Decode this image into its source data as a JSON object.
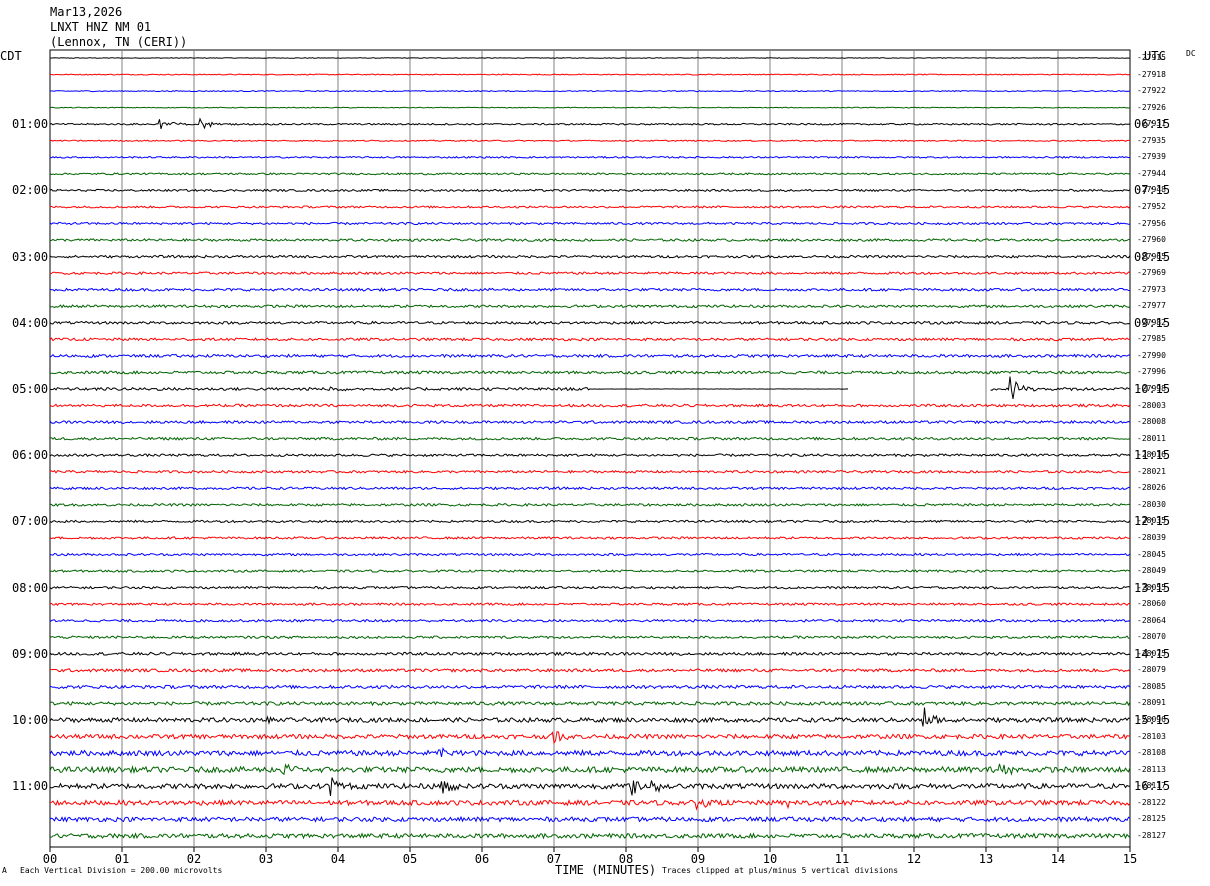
{
  "header": {
    "date": "Mar13,2026",
    "station": "LNXT HNZ NM 01",
    "location": "(Lennox, TN (CERI))"
  },
  "left_title": "CDT",
  "right_title": "UTC",
  "dc_label": "DC",
  "footer": {
    "mark": "A",
    "scale": "Each Vertical Division =  200.00 microvolts",
    "clip": "Traces clipped at plus/minus 5 vertical divisions"
  },
  "colors": {
    "trace_cycle": [
      "#000000",
      "#ff0000",
      "#0000ff",
      "#006400"
    ],
    "grid": "#808080"
  },
  "chart_data": {
    "type": "line",
    "title": "",
    "xlabel": "TIME (MINUTES)",
    "x_ticks": [
      "00",
      "01",
      "02",
      "03",
      "04",
      "05",
      "06",
      "07",
      "08",
      "09",
      "10",
      "11",
      "12",
      "13",
      "14",
      "15"
    ],
    "xlim": [
      0,
      15
    ],
    "left_time_labels": [
      "01:00",
      "02:00",
      "03:00",
      "04:00",
      "05:00",
      "06:00",
      "07:00",
      "08:00",
      "09:00",
      "10:00",
      "11:00"
    ],
    "right_time_labels": [
      "06:15",
      "07:15",
      "08:15",
      "09:15",
      "10:15",
      "11:15",
      "12:15",
      "13:15",
      "14:15",
      "15:15",
      "16:15"
    ],
    "trace_count": 48,
    "traces_per_hour": 4,
    "first_labeled_trace": 4,
    "dc_offsets": [
      "-27915",
      "-27918",
      "-27922",
      "-27926",
      "-27931",
      "-27935",
      "-27939",
      "-27944",
      "-27948",
      "-27952",
      "-27956",
      "-27960",
      "-27965",
      "-27969",
      "-27973",
      "-27977",
      "-27982",
      "-27985",
      "-27990",
      "-27996",
      "-27998",
      "-28003",
      "-28008",
      "-28011",
      "-28016",
      "-28021",
      "-28026",
      "-28030",
      "-28035",
      "-28039",
      "-28045",
      "-28049",
      "-28055",
      "-28060",
      "-28064",
      "-28070",
      "-28075",
      "-28079",
      "-28085",
      "-28091",
      "-28096",
      "-28103",
      "-28108",
      "-28113",
      "-28117",
      "-28122",
      "-28125",
      "-28127"
    ],
    "noise_level": [
      0.3,
      0.5,
      0.5,
      0.4,
      0.8,
      0.6,
      0.8,
      0.9,
      1.0,
      1.0,
      1.1,
      1.2,
      1.2,
      1.2,
      1.3,
      1.3,
      1.3,
      1.3,
      1.4,
      1.4,
      1.4,
      1.3,
      1.3,
      1.3,
      1.2,
      1.2,
      1.2,
      1.2,
      1.1,
      1.1,
      1.1,
      1.1,
      1.1,
      1.1,
      1.2,
      1.2,
      1.4,
      1.5,
      1.6,
      1.7,
      2.2,
      2.2,
      2.6,
      2.8,
      2.6,
      2.4,
      2.2,
      2.2
    ],
    "events": [
      {
        "trace": 4,
        "minute": 1.55,
        "amplitude": 9
      },
      {
        "trace": 4,
        "minute": 2.1,
        "amplitude": 6
      },
      {
        "trace": 20,
        "minute": 3.9,
        "amplitude": 4
      },
      {
        "trace": 20,
        "minute": 13.35,
        "amplitude": 16
      },
      {
        "trace": 40,
        "minute": 12.15,
        "amplitude": 12
      },
      {
        "trace": 40,
        "minute": 2.9,
        "amplitude": 5
      },
      {
        "trace": 41,
        "minute": 7.0,
        "amplitude": 8
      },
      {
        "trace": 42,
        "minute": 5.4,
        "amplitude": 7
      },
      {
        "trace": 43,
        "minute": 3.25,
        "amplitude": 9
      },
      {
        "trace": 43,
        "minute": 13.2,
        "amplitude": 8
      },
      {
        "trace": 44,
        "minute": 3.9,
        "amplitude": 11
      },
      {
        "trace": 44,
        "minute": 5.45,
        "amplitude": 14
      },
      {
        "trace": 44,
        "minute": 8.1,
        "amplitude": 12
      },
      {
        "trace": 44,
        "minute": 8.35,
        "amplitude": 10
      },
      {
        "trace": 45,
        "minute": 9.0,
        "amplitude": 7
      },
      {
        "trace": 45,
        "minute": 10.25,
        "amplitude": 6
      }
    ],
    "flat_segments": [
      {
        "trace": 20,
        "from_minute": 7.5,
        "to_minute": 11.1
      },
      {
        "trace": 20,
        "from_minute": 11.1,
        "to_minute": 13.05,
        "gap": true
      }
    ]
  }
}
